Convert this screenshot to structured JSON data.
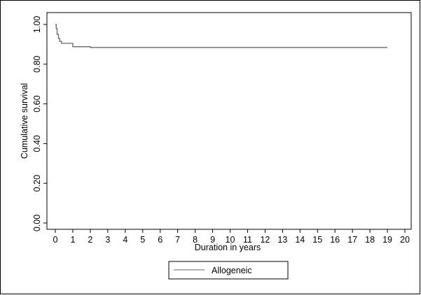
{
  "chart_data": {
    "type": "line",
    "title": "",
    "xlabel": "Duration in years",
    "ylabel": "Cumulative survival",
    "xlim": [
      0,
      20
    ],
    "ylim": [
      0,
      1
    ],
    "x_ticks": [
      "0",
      "1",
      "2",
      "3",
      "4",
      "5",
      "6",
      "7",
      "8",
      "9",
      "10",
      "11",
      "12",
      "13",
      "14",
      "15",
      "16",
      "17",
      "18",
      "19",
      "20"
    ],
    "y_ticks": [
      "0.00",
      "0.20",
      "0.40",
      "0.60",
      "0.80",
      "1.00"
    ],
    "grid": false,
    "legend_position": "bottom-center",
    "step": true,
    "series": [
      {
        "name": "Allogeneic",
        "color": "#666666",
        "x": [
          0,
          0.05,
          0.1,
          0.18,
          0.25,
          0.35,
          0.5,
          1.0,
          2.0,
          19.0
        ],
        "y": [
          1.0,
          0.98,
          0.95,
          0.93,
          0.915,
          0.905,
          0.905,
          0.888,
          0.884,
          0.884
        ]
      }
    ]
  }
}
